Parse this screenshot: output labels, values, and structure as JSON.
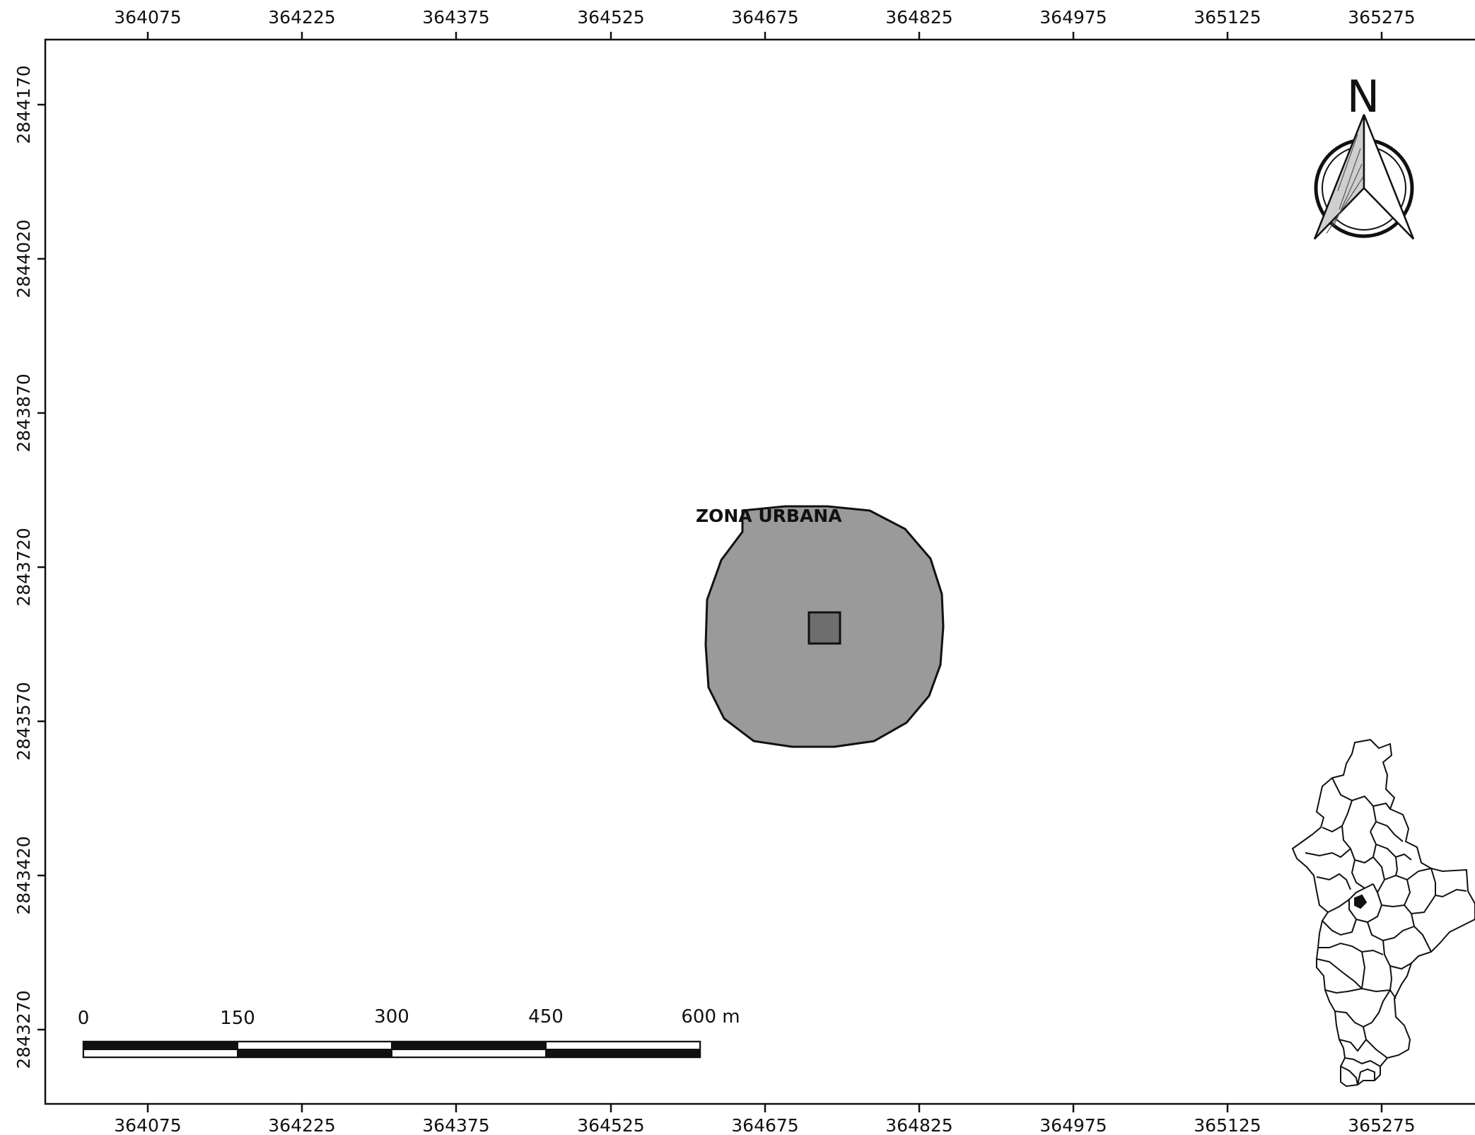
{
  "map": {
    "top_ticks": [
      "364075",
      "364225",
      "364375",
      "364525",
      "364675",
      "364825",
      "364975",
      "365125",
      "365275"
    ],
    "bottom_ticks": [
      "364075",
      "364225",
      "364375",
      "364525",
      "364675",
      "364825",
      "364975",
      "365125",
      "365275"
    ],
    "left_ticks": [
      "2844170",
      "2844020",
      "2843870",
      "2843720",
      "2843570",
      "2843420",
      "2843270"
    ],
    "zone_label": "ZONA URBANA",
    "north_label": "N",
    "scale_labels": [
      "0",
      "150",
      "300",
      "450",
      "600 m"
    ],
    "colors": {
      "zone_fill": "#9a9a9a",
      "site_fill": "#6e6e6e",
      "frame": "#111111"
    }
  }
}
